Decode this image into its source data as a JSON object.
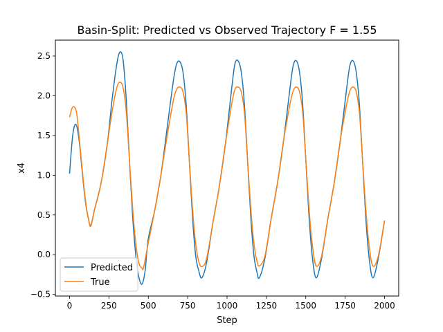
{
  "chart_data": {
    "type": "line",
    "title": "Basin-Split: Predicted vs Observed Trajectory F = 1.55",
    "xlabel": "Step",
    "ylabel": "x4",
    "xlim": [
      -90,
      2090
    ],
    "ylim": [
      -0.52,
      2.7
    ],
    "xticks": [
      0,
      250,
      500,
      750,
      1000,
      1250,
      1500,
      1750,
      2000
    ],
    "xtick_labels": [
      "0",
      "250",
      "500",
      "750",
      "1000",
      "1250",
      "1500",
      "1750",
      "2000"
    ],
    "yticks": [
      -0.5,
      0.0,
      0.5,
      1.0,
      1.5,
      2.0,
      2.5
    ],
    "ytick_labels": [
      "−0.5",
      "0.0",
      "0.5",
      "1.0",
      "1.5",
      "2.0",
      "2.5"
    ],
    "grid": false,
    "legend_position": "lower-left",
    "series": [
      {
        "name": "Predicted",
        "color": "#1f77b4",
        "x": [
          0,
          20,
          40,
          60,
          80,
          100,
          120,
          135,
          160,
          200,
          240,
          270,
          300,
          320,
          340,
          360,
          380,
          400,
          420,
          440,
          460,
          480,
          500,
          540,
          580,
          620,
          660,
          680,
          700,
          720,
          740,
          760,
          780,
          800,
          820,
          840,
          870,
          910,
          950,
          990,
          1030,
          1050,
          1070,
          1090,
          1110,
          1130,
          1150,
          1170,
          1190,
          1205,
          1240,
          1280,
          1320,
          1360,
          1400,
          1420,
          1440,
          1460,
          1480,
          1500,
          1520,
          1540,
          1565,
          1600,
          1640,
          1680,
          1720,
          1760,
          1780,
          1800,
          1820,
          1840,
          1860,
          1880,
          1900,
          1925,
          1960,
          2000
        ],
        "y": [
          1.02,
          1.5,
          1.64,
          1.45,
          1.05,
          0.68,
          0.45,
          0.37,
          0.58,
          0.9,
          1.4,
          1.95,
          2.4,
          2.55,
          2.45,
          1.95,
          1.2,
          0.5,
          0.0,
          -0.28,
          -0.37,
          -0.2,
          0.2,
          0.55,
          1.0,
          1.6,
          2.2,
          2.4,
          2.43,
          2.3,
          1.9,
          1.2,
          0.5,
          0.0,
          -0.2,
          -0.29,
          -0.1,
          0.4,
          0.85,
          1.4,
          2.1,
          2.4,
          2.44,
          2.3,
          1.9,
          1.2,
          0.5,
          0.0,
          -0.22,
          -0.29,
          -0.05,
          0.45,
          0.9,
          1.45,
          2.1,
          2.38,
          2.44,
          2.3,
          1.9,
          1.2,
          0.5,
          0.0,
          -0.29,
          -0.05,
          0.45,
          0.9,
          1.45,
          2.1,
          2.38,
          2.44,
          2.3,
          1.9,
          1.2,
          0.5,
          0.0,
          -0.29,
          -0.05,
          0.43
        ]
      },
      {
        "name": "True",
        "color": "#ff7f0e",
        "x": [
          0,
          15,
          30,
          45,
          60,
          80,
          100,
          120,
          135,
          160,
          200,
          240,
          270,
          300,
          320,
          340,
          360,
          380,
          400,
          420,
          440,
          460,
          470,
          500,
          540,
          580,
          620,
          660,
          680,
          700,
          720,
          740,
          760,
          780,
          800,
          820,
          840,
          870,
          910,
          950,
          990,
          1030,
          1050,
          1070,
          1090,
          1110,
          1130,
          1150,
          1170,
          1190,
          1205,
          1240,
          1280,
          1320,
          1360,
          1400,
          1420,
          1440,
          1460,
          1480,
          1500,
          1520,
          1540,
          1565,
          1600,
          1640,
          1680,
          1720,
          1760,
          1780,
          1800,
          1820,
          1840,
          1860,
          1880,
          1900,
          1925,
          1960,
          2000
        ],
        "y": [
          1.73,
          1.84,
          1.86,
          1.78,
          1.5,
          1.08,
          0.7,
          0.45,
          0.36,
          0.58,
          0.9,
          1.4,
          1.8,
          2.1,
          2.17,
          2.1,
          1.8,
          1.2,
          0.6,
          0.15,
          -0.1,
          -0.17,
          -0.16,
          0.15,
          0.55,
          1.0,
          1.5,
          1.95,
          2.08,
          2.11,
          2.05,
          1.8,
          1.2,
          0.6,
          0.15,
          -0.08,
          -0.15,
          -0.05,
          0.4,
          0.85,
          1.4,
          1.9,
          2.08,
          2.11,
          2.05,
          1.8,
          1.2,
          0.6,
          0.15,
          -0.08,
          -0.14,
          -0.02,
          0.45,
          0.9,
          1.45,
          1.9,
          2.06,
          2.11,
          2.05,
          1.8,
          1.2,
          0.6,
          0.15,
          -0.14,
          -0.02,
          0.45,
          0.9,
          1.45,
          1.9,
          2.06,
          2.11,
          2.05,
          1.8,
          1.2,
          0.6,
          0.15,
          -0.14,
          -0.02,
          0.43
        ]
      }
    ]
  }
}
